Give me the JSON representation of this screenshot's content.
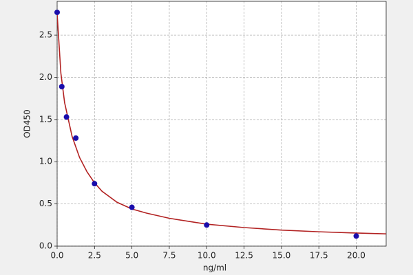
{
  "chart_data": {
    "type": "scatter",
    "xlabel": "ng/ml",
    "ylabel": "OD450",
    "xlim": [
      0,
      22
    ],
    "ylim": [
      0,
      2.9
    ],
    "xticks": [
      {
        "value": 0,
        "label": "0.0"
      },
      2.5,
      {
        "value": 5,
        "label": "5.0"
      },
      7.5,
      {
        "value": 10,
        "label": "10.0"
      },
      12.5,
      {
        "value": 15,
        "label": "15.0"
      },
      17.5,
      {
        "value": 20,
        "label": "20.0"
      }
    ],
    "yticks": [
      {
        "value": 0,
        "label": "0.0"
      },
      0.5,
      {
        "value": 1,
        "label": "1.0"
      },
      1.5,
      {
        "value": 2,
        "label": "2.0"
      },
      2.5
    ],
    "grid": true,
    "series": [
      {
        "type": "line",
        "color": "#b22222",
        "x": [
          0,
          0.25,
          0.5,
          1,
          1.5,
          2,
          2.5,
          3,
          4,
          5,
          6,
          7.5,
          10,
          12.5,
          15,
          17.5,
          20,
          22
        ],
        "values": [
          2.75,
          2.05,
          1.7,
          1.3,
          1.05,
          0.88,
          0.75,
          0.65,
          0.52,
          0.44,
          0.39,
          0.33,
          0.26,
          0.22,
          0.19,
          0.17,
          0.155,
          0.145
        ]
      },
      {
        "type": "scatter",
        "color": "#1a0dab",
        "x": [
          0,
          0.3125,
          0.625,
          1.25,
          2.5,
          5,
          10,
          20
        ],
        "values": [
          2.77,
          1.89,
          1.53,
          1.28,
          0.74,
          0.46,
          0.25,
          0.12
        ]
      }
    ]
  }
}
